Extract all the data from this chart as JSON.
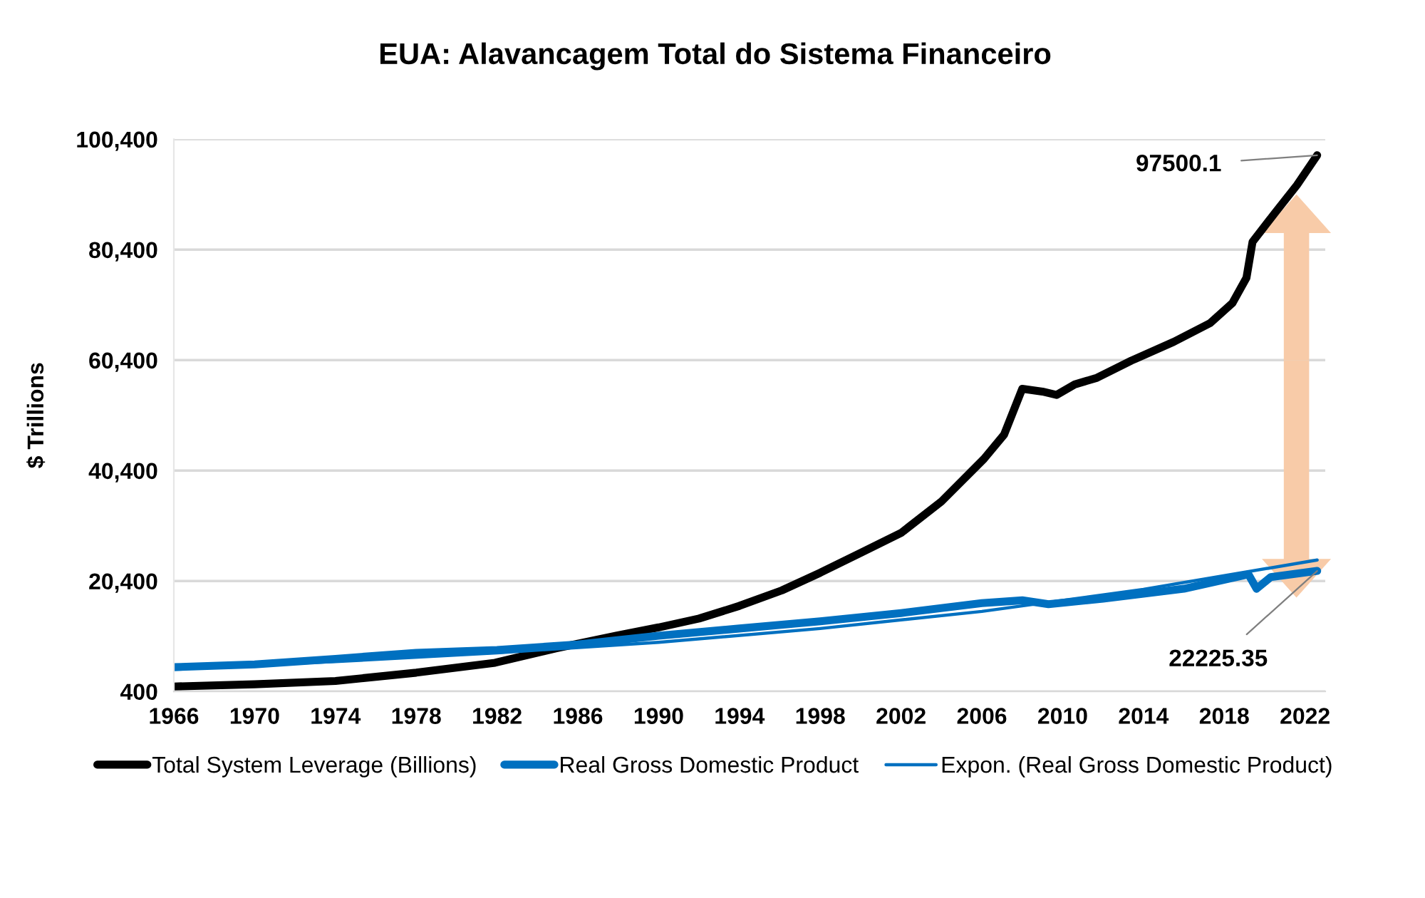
{
  "chart_data": {
    "type": "line",
    "title": "EUA: Alavancagem Total do Sistema Financeiro",
    "ylabel": "$ Trillions",
    "xlim": [
      1966,
      2023
    ],
    "xticks": [
      1966,
      1970,
      1974,
      1978,
      1982,
      1986,
      1990,
      1994,
      1998,
      2002,
      2006,
      2010,
      2014,
      2018,
      2022
    ],
    "ylim": [
      400,
      100400
    ],
    "yticks": [
      {
        "value": 400,
        "label": "400"
      },
      {
        "value": 20400,
        "label": "20,400"
      },
      {
        "value": 40400,
        "label": "40,400"
      },
      {
        "value": 60400,
        "label": "60,400"
      },
      {
        "value": 80400,
        "label": "80,400"
      },
      {
        "value": 100400,
        "label": "100,400"
      }
    ],
    "grid": "y",
    "legend": "bottom",
    "series": [
      {
        "name": "Total System Leverage (Billions)",
        "color": "#000000",
        "x": [
          1966,
          1970,
          1974,
          1978,
          1981.9,
          1984.9,
          1987.9,
          1990,
          1992,
          1994,
          1996.1,
          1998,
          2000,
          2002,
          2004,
          2006.1,
          2007.1,
          2008,
          2009,
          2009.7,
          2010.6,
          2011.7,
          2013.4,
          2015.5,
          2017.3,
          2018.4,
          2019.1,
          2019.4,
          2020.5,
          2021.6,
          2022.6
        ],
        "values": [
          1300,
          1700,
          2300,
          3800,
          5600,
          8200,
          10500,
          12000,
          13600,
          15900,
          18700,
          21900,
          25500,
          29100,
          34800,
          42500,
          46900,
          55200,
          54700,
          54100,
          56000,
          57200,
          60300,
          63700,
          67100,
          70700,
          75300,
          81800,
          87000,
          92100,
          97500.1
        ]
      },
      {
        "name": "Real Gross Domestic Product",
        "color": "#0070c0",
        "x": [
          1966,
          1970,
          1974,
          1978,
          1982,
          1986,
          1990,
          1994,
          1998,
          2002,
          2006,
          2008,
          2009.3,
          2012,
          2016,
          2019.2,
          2019.6,
          2020.3,
          2022.6
        ],
        "values": [
          4800,
          5300,
          6300,
          7400,
          7900,
          8900,
          10500,
          11800,
          13100,
          14600,
          16400,
          16900,
          16200,
          17200,
          19000,
          21600,
          19000,
          21100,
          22225.35
        ]
      },
      {
        "name": "Expon. (Real Gross Domestic Product)",
        "color": "#0070c0",
        "x": [
          1966,
          1974,
          1982,
          1990,
          1998,
          2006,
          2014,
          2022.6
        ],
        "values": [
          4600,
          5800,
          7400,
          9300,
          11800,
          14900,
          18900,
          24200
        ]
      }
    ],
    "annotations": [
      {
        "text": "97500.1",
        "x": 2022.6,
        "y": 97500.1
      },
      {
        "text": "22225.35",
        "x": 2022.6,
        "y": 22225.35
      }
    ]
  }
}
